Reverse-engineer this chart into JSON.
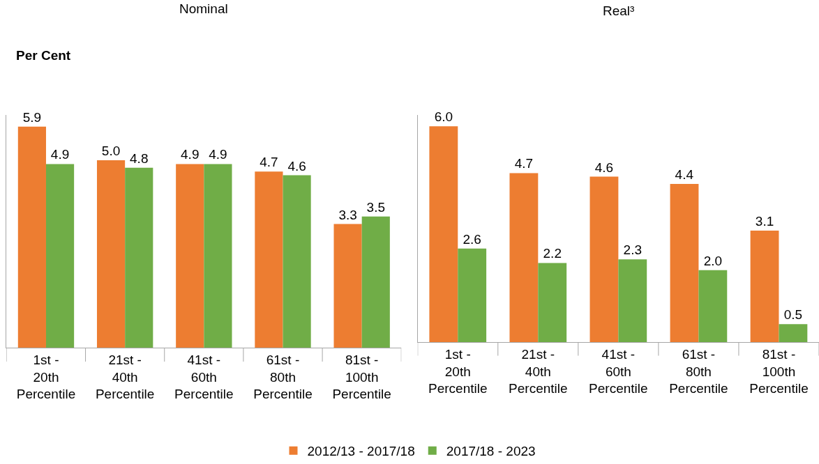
{
  "chart_data": [
    {
      "type": "bar",
      "title": "Nominal",
      "ylabel": "Per Cent",
      "categories": [
        "1st - 20th Percentile",
        "21st - 40th Percentile",
        "41st - 60th Percentile",
        "61st - 80th Percentile",
        "81st - 100th Percentile"
      ],
      "series": [
        {
          "color": "#ed7d31",
          "values": [
            5.9,
            5.0,
            4.9,
            4.7,
            3.3
          ],
          "value_labels": [
            "5.9",
            "5.0",
            "4.9",
            "4.7",
            "3.3"
          ]
        },
        {
          "color": "#70ad47",
          "values": [
            4.9,
            4.8,
            4.9,
            4.6,
            3.5
          ],
          "value_labels": [
            "4.9",
            "4.8",
            "4.9",
            "4.6",
            "3.5"
          ]
        }
      ],
      "grid": false,
      "legend": false,
      "tick_labels": "x"
    },
    {
      "type": "bar",
      "title": "Real³",
      "categories": [
        "1st - 20th Percentile",
        "21st - 40th Percentile",
        "41st - 60th Percentile",
        "61st - 80th Percentile",
        "81st - 100th Percentile"
      ],
      "series": [
        {
          "name": "2012/13 - 2017/18",
          "color": "#ed7d31",
          "values": [
            6.0,
            4.7,
            4.6,
            4.4,
            3.1
          ],
          "value_labels": [
            "6.0",
            "4.7",
            "4.6",
            "4.4",
            "3.1"
          ]
        },
        {
          "name": "2017/18 - 2023",
          "color": "#70ad47",
          "values": [
            2.6,
            2.2,
            2.3,
            2.0,
            0.5
          ],
          "value_labels": [
            "2.6",
            "2.2",
            "2.3",
            "2.0",
            "0.5"
          ]
        }
      ],
      "grid": false,
      "legend": "bottom",
      "tick_labels": "x"
    }
  ]
}
